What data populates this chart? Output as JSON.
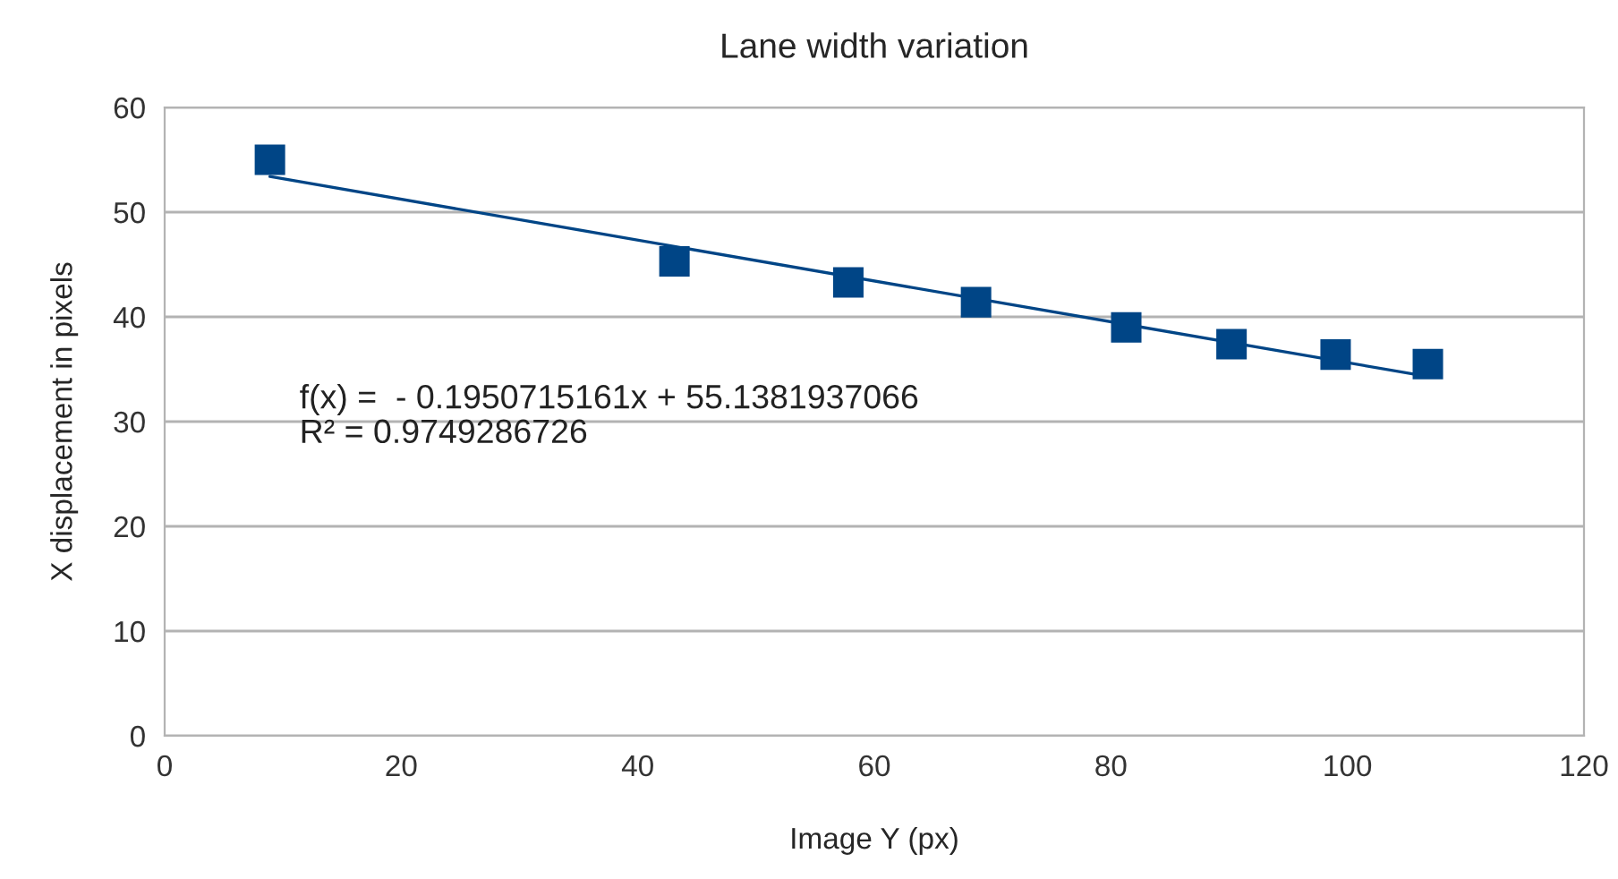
{
  "chart_data": {
    "type": "scatter",
    "title": "Lane width variation",
    "xlabel": "Image Y (px)",
    "ylabel": "X displacement in pixels",
    "series": [
      {
        "marker": "square",
        "color": "#004586",
        "x": [
          8.9,
          43.1,
          57.8,
          68.6,
          81.3,
          90.2,
          99.0,
          106.8
        ],
        "values": [
          55.0,
          45.3,
          43.3,
          41.4,
          39.0,
          37.4,
          36.4,
          35.5
        ]
      },
      {
        "type": "line",
        "color": "#004586",
        "x": [
          8.9,
          106.8
        ],
        "values": [
          53.4,
          34.3
        ]
      }
    ],
    "annotations": [
      "f(x) =  - 0.1950715161x + 55.1381937066",
      "R² = 0.9749286726"
    ],
    "xlim": [
      0,
      120
    ],
    "xticks": [
      0,
      20,
      40,
      60,
      80,
      100,
      120
    ],
    "ylim": [
      0,
      60
    ],
    "yticks": [
      0,
      10,
      20,
      30,
      40,
      50,
      60
    ],
    "grid": "y",
    "legend": false
  }
}
